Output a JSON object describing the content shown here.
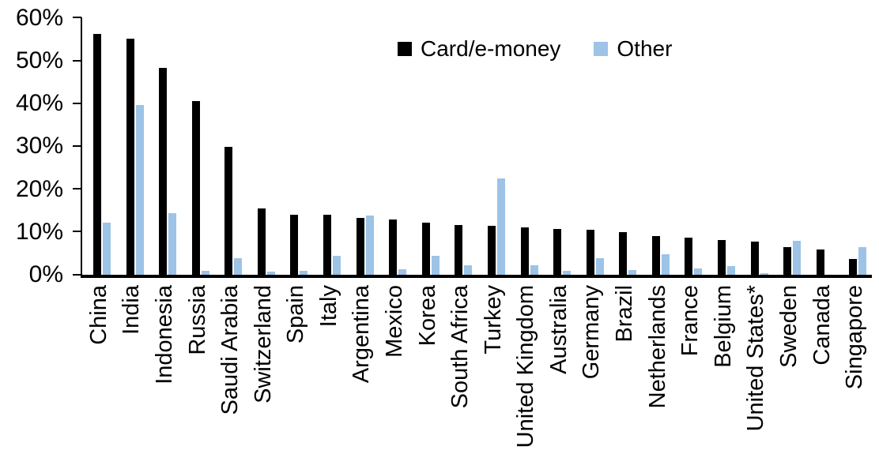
{
  "chart_data": {
    "type": "bar",
    "title": "",
    "xlabel": "",
    "ylabel": "",
    "ylim": [
      0,
      60
    ],
    "ytick_labels": [
      "0%",
      "10%",
      "20%",
      "30%",
      "40%",
      "50%",
      "60%"
    ],
    "ytick_values": [
      0,
      10,
      20,
      30,
      40,
      50,
      60
    ],
    "grid": false,
    "legend_position": "top-center",
    "categories": [
      "China",
      "India",
      "Indonesia",
      "Russia",
      "Saudi Arabia",
      "Switzerland",
      "Spain",
      "Italy",
      "Argentina",
      "Mexico",
      "Korea",
      "South Africa",
      "Turkey",
      "United Kingdom",
      "Australia",
      "Germany",
      "Brazil",
      "Netherlands",
      "France",
      "Belgium",
      "United States*",
      "Sweden",
      "Canada",
      "Singapore"
    ],
    "series": [
      {
        "name": "Card/e-money",
        "color": "#000000",
        "values": [
          56.3,
          55.2,
          48.4,
          40.5,
          29.8,
          15.5,
          14.1,
          14.0,
          13.3,
          12.9,
          12.2,
          11.7,
          11.4,
          11.0,
          10.7,
          10.5,
          9.9,
          9.1,
          8.6,
          8.1,
          7.8,
          6.5,
          5.9,
          3.7
        ]
      },
      {
        "name": "Other",
        "color": "#9DC3E6",
        "values": [
          12.2,
          39.7,
          14.3,
          0.9,
          3.9,
          0.7,
          1.0,
          4.5,
          13.8,
          1.2,
          4.4,
          2.2,
          22.6,
          2.3,
          0.9,
          3.8,
          1.1,
          4.8,
          1.4,
          2.0,
          0.3,
          8.0,
          0,
          6.5
        ]
      }
    ]
  },
  "colors": {
    "background": "#FFFFFF",
    "axis": "#000000",
    "card_series": "#000000",
    "other_series": "#9DC3E6"
  }
}
